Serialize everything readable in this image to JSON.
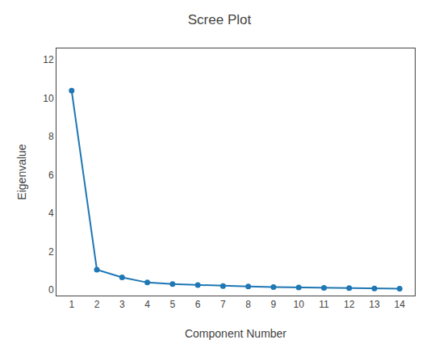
{
  "chart_data": {
    "type": "line",
    "title": "Scree Plot",
    "xlabel": "Component Number",
    "ylabel": "Eigenvalue",
    "x": [
      1,
      2,
      3,
      4,
      5,
      6,
      7,
      8,
      9,
      10,
      11,
      12,
      13,
      14
    ],
    "values": [
      10.4,
      1.05,
      0.65,
      0.38,
      0.3,
      0.25,
      0.2,
      0.17,
      0.14,
      0.12,
      0.1,
      0.09,
      0.07,
      0.06
    ],
    "xlim": [
      0.4,
      14.6
    ],
    "ylim": [
      -0.3,
      12.6
    ],
    "xticks": [
      1,
      2,
      3,
      4,
      5,
      6,
      7,
      8,
      9,
      10,
      11,
      12,
      13,
      14
    ],
    "yticks": [
      0,
      2,
      4,
      6,
      8,
      10,
      12
    ],
    "marker": "circle",
    "grid": false
  }
}
